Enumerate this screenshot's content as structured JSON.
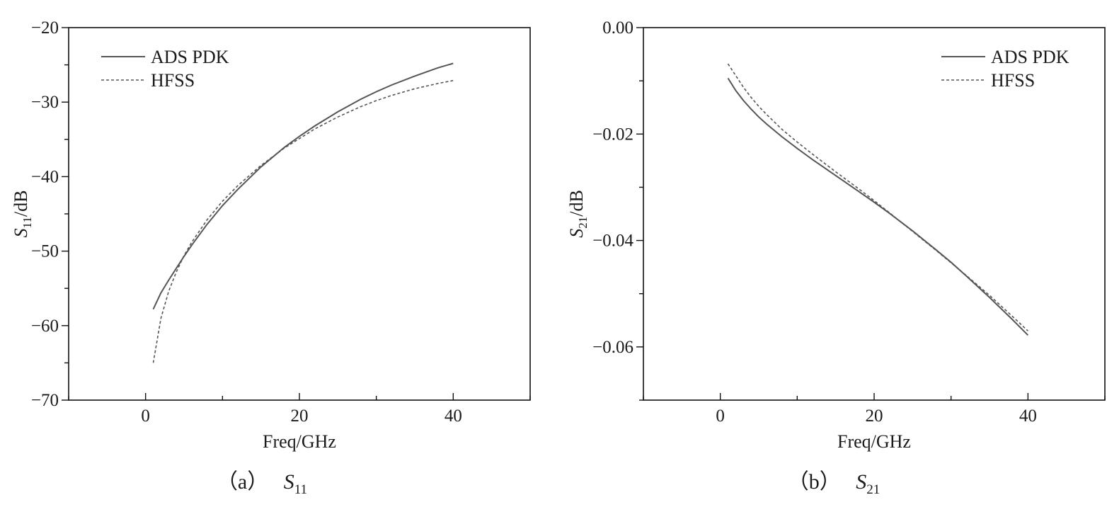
{
  "chart_data": [
    {
      "type": "line",
      "xlabel": "Freq/GHz",
      "ylabel": {
        "base": "S",
        "sub": "11",
        "suffix": "/dB"
      },
      "xlim": [
        -10,
        50
      ],
      "ylim": [
        -70,
        -20
      ],
      "x_major_ticks": [
        0,
        20,
        40
      ],
      "x_minor_ticks": [
        -10,
        10,
        30,
        50
      ],
      "y_major_ticks": [
        -70,
        -60,
        -50,
        -40,
        -30,
        -20
      ],
      "y_tick_labels": [
        "−70",
        "−60",
        "−50",
        "−40",
        "−30",
        "−20"
      ],
      "y_minor_ticks": [
        -65,
        -55,
        -45,
        -35,
        -25
      ],
      "grid": false,
      "legend_position": "top-left",
      "caption": {
        "prefix": "（a）",
        "base": "S",
        "sub": "11"
      },
      "series": [
        {
          "name": "ADS PDK",
          "style": "solid",
          "color": "#555555",
          "x": [
            1,
            2,
            3,
            4,
            5,
            6,
            8,
            10,
            12,
            15,
            18,
            20,
            22,
            25,
            28,
            30,
            32,
            35,
            38,
            40
          ],
          "y": [
            -57.8,
            -55.6,
            -53.9,
            -52.3,
            -50.7,
            -49.2,
            -46.4,
            -43.9,
            -41.7,
            -38.7,
            -36.1,
            -34.6,
            -33.2,
            -31.3,
            -29.6,
            -28.6,
            -27.7,
            -26.5,
            -25.4,
            -24.8
          ]
        },
        {
          "name": "HFSS",
          "style": "dashed",
          "color": "#555555",
          "x": [
            1,
            2,
            3,
            4,
            5,
            6,
            8,
            10,
            12,
            15,
            18,
            20,
            22,
            25,
            28,
            30,
            32,
            35,
            38,
            40
          ],
          "y": [
            -65.0,
            -59.0,
            -55.4,
            -52.8,
            -50.6,
            -48.8,
            -45.8,
            -43.3,
            -41.2,
            -38.5,
            -36.2,
            -34.9,
            -33.6,
            -32.0,
            -30.6,
            -29.8,
            -29.1,
            -28.2,
            -27.5,
            -27.1
          ]
        }
      ]
    },
    {
      "type": "line",
      "xlabel": "Freq/GHz",
      "ylabel": {
        "base": "S",
        "sub": "21",
        "suffix": "/dB"
      },
      "xlim": [
        -10,
        50
      ],
      "ylim": [
        -0.07,
        0.0
      ],
      "x_major_ticks": [
        0,
        20,
        40
      ],
      "x_minor_ticks": [
        -10,
        10,
        30,
        50
      ],
      "y_major_ticks": [
        -0.06,
        -0.04,
        -0.02,
        0.0
      ],
      "y_tick_labels": [
        "−0.06",
        "−0.04",
        "−0.02",
        "0.00"
      ],
      "y_minor_ticks": [
        -0.07,
        -0.05,
        -0.03,
        -0.01
      ],
      "grid": false,
      "legend_position": "top-right",
      "caption": {
        "prefix": "（b）",
        "base": "S",
        "sub": "21"
      },
      "series": [
        {
          "name": "ADS PDK",
          "style": "solid",
          "color": "#555555",
          "x": [
            1,
            2,
            3,
            4,
            5,
            6,
            8,
            10,
            12,
            15,
            18,
            20,
            22,
            25,
            28,
            30,
            32,
            35,
            38,
            40
          ],
          "y": [
            -0.0095,
            -0.0118,
            -0.0137,
            -0.0153,
            -0.0168,
            -0.0181,
            -0.0205,
            -0.0227,
            -0.0248,
            -0.0278,
            -0.0308,
            -0.0328,
            -0.0349,
            -0.0382,
            -0.0417,
            -0.0441,
            -0.0467,
            -0.0507,
            -0.0549,
            -0.0578
          ]
        },
        {
          "name": "HFSS",
          "style": "dashed",
          "color": "#555555",
          "x": [
            1,
            2,
            3,
            4,
            5,
            6,
            8,
            10,
            12,
            15,
            18,
            20,
            22,
            25,
            28,
            30,
            32,
            35,
            38,
            40
          ],
          "y": [
            -0.0068,
            -0.009,
            -0.0112,
            -0.0131,
            -0.0148,
            -0.0163,
            -0.0191,
            -0.0215,
            -0.0238,
            -0.0271,
            -0.0303,
            -0.0325,
            -0.0348,
            -0.0383,
            -0.0418,
            -0.0442,
            -0.0466,
            -0.0503,
            -0.0543,
            -0.057
          ]
        }
      ]
    }
  ]
}
